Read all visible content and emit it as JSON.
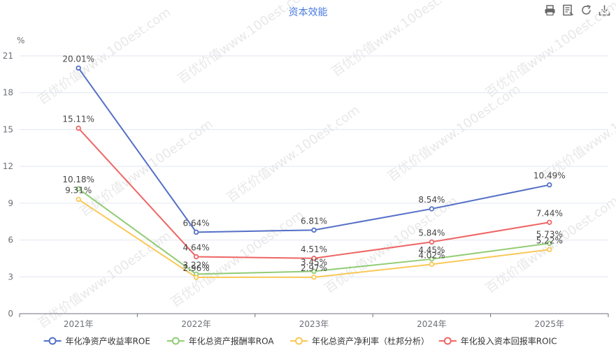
{
  "toolbar": {
    "icons": [
      "print-icon",
      "data-view-icon",
      "refresh-icon",
      "download-icon"
    ]
  },
  "watermark": "百优价值www.100est.com",
  "chart_data": {
    "type": "line",
    "title": "资本效能",
    "ylabel": "%",
    "xlabel": "",
    "categories": [
      "2021年",
      "2022年",
      "2023年",
      "2024年",
      "2025年"
    ],
    "ylim": [
      0,
      21
    ],
    "yticks": [
      0,
      3,
      6,
      9,
      12,
      15,
      18,
      21
    ],
    "grid": true,
    "legend_position": "bottom",
    "series": [
      {
        "name": "年化净资产收益率ROE",
        "color": "#5470c6",
        "values": [
          20.01,
          6.64,
          6.81,
          8.54,
          10.49
        ],
        "labels": [
          "20.01%",
          "6.64%",
          "6.81%",
          "8.54%",
          "10.49%"
        ]
      },
      {
        "name": "年化总资产报酬率ROA",
        "color": "#91cc75",
        "values": [
          10.18,
          3.22,
          3.45,
          4.45,
          5.73
        ],
        "labels": [
          "10.18%",
          "3.22%",
          "3.45%",
          "4.45%",
          "5.73%"
        ]
      },
      {
        "name": "年化总资产净利率（杜邦分析）",
        "color": "#fac858",
        "values": [
          9.31,
          2.96,
          2.97,
          4.02,
          5.22
        ],
        "labels": [
          "9.31%",
          "2.96%",
          "2.97%",
          "4.02%",
          "5.22%"
        ]
      },
      {
        "name": "年化投入资本回报率ROIC",
        "color": "#ee6666",
        "values": [
          15.11,
          4.64,
          4.51,
          5.84,
          7.44
        ],
        "labels": [
          "15.11%",
          "4.64%",
          "4.51%",
          "5.84%",
          "7.44%"
        ]
      }
    ]
  }
}
